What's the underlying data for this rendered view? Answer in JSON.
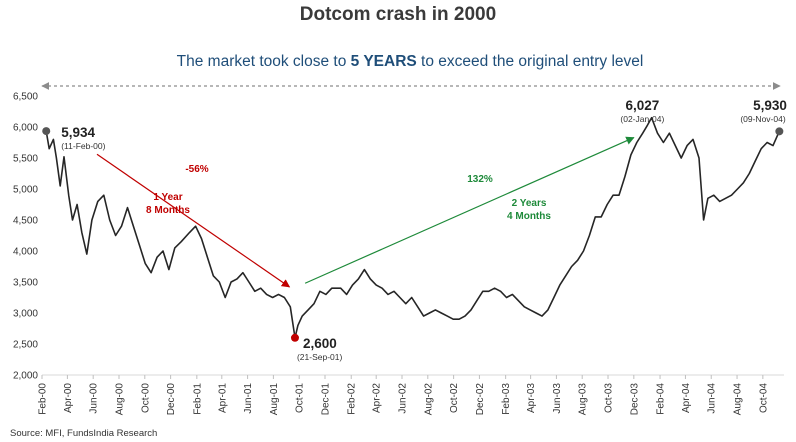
{
  "chart_data": {
    "type": "line",
    "title": "Dotcom crash in 2000",
    "subtitle_parts": [
      "The market took close to ",
      "5 YEARS",
      " to exceed the original entry level"
    ],
    "ylim": [
      2000,
      6500
    ],
    "yticks": [
      "2,000",
      "2,500",
      "3,000",
      "3,500",
      "4,000",
      "4,500",
      "5,000",
      "5,500",
      "6,000",
      "6,500"
    ],
    "x_range": [
      "2000-02-01",
      "2004-11-20"
    ],
    "xticks": [
      {
        "label": "Feb-00",
        "date": "2000-02-01"
      },
      {
        "label": "Apr-00",
        "date": "2000-04-01"
      },
      {
        "label": "Jun-00",
        "date": "2000-06-01"
      },
      {
        "label": "Aug-00",
        "date": "2000-08-01"
      },
      {
        "label": "Oct-00",
        "date": "2000-10-01"
      },
      {
        "label": "Dec-00",
        "date": "2000-12-01"
      },
      {
        "label": "Feb-01",
        "date": "2001-02-01"
      },
      {
        "label": "Apr-01",
        "date": "2001-04-01"
      },
      {
        "label": "Jun-01",
        "date": "2001-06-01"
      },
      {
        "label": "Aug-01",
        "date": "2001-08-01"
      },
      {
        "label": "Oct-01",
        "date": "2001-10-01"
      },
      {
        "label": "Dec-01",
        "date": "2001-12-01"
      },
      {
        "label": "Feb-02",
        "date": "2002-02-01"
      },
      {
        "label": "Apr-02",
        "date": "2002-04-01"
      },
      {
        "label": "Jun-02",
        "date": "2002-06-01"
      },
      {
        "label": "Aug-02",
        "date": "2002-08-01"
      },
      {
        "label": "Oct-02",
        "date": "2002-10-01"
      },
      {
        "label": "Dec-02",
        "date": "2002-12-01"
      },
      {
        "label": "Feb-03",
        "date": "2003-02-01"
      },
      {
        "label": "Apr-03",
        "date": "2003-04-01"
      },
      {
        "label": "Jun-03",
        "date": "2003-06-01"
      },
      {
        "label": "Aug-03",
        "date": "2003-08-01"
      },
      {
        "label": "Oct-03",
        "date": "2003-10-01"
      },
      {
        "label": "Dec-03",
        "date": "2003-12-01"
      },
      {
        "label": "Feb-04",
        "date": "2004-02-01"
      },
      {
        "label": "Apr-04",
        "date": "2004-04-01"
      },
      {
        "label": "Jun-04",
        "date": "2004-06-01"
      },
      {
        "label": "Aug-04",
        "date": "2004-08-01"
      },
      {
        "label": "Oct-04",
        "date": "2004-10-01"
      }
    ],
    "series": [
      {
        "color": "#262626",
        "points": [
          [
            "2000-02-11",
            5934
          ],
          [
            "2000-02-18",
            5650
          ],
          [
            "2000-02-28",
            5800
          ],
          [
            "2000-03-06",
            5500
          ],
          [
            "2000-03-15",
            5050
          ],
          [
            "2000-03-24",
            5520
          ],
          [
            "2000-04-04",
            4900
          ],
          [
            "2000-04-13",
            4500
          ],
          [
            "2000-04-24",
            4750
          ],
          [
            "2000-05-05",
            4300
          ],
          [
            "2000-05-17",
            3950
          ],
          [
            "2000-05-29",
            4500
          ],
          [
            "2000-06-12",
            4800
          ],
          [
            "2000-06-26",
            4900
          ],
          [
            "2000-07-10",
            4500
          ],
          [
            "2000-07-24",
            4250
          ],
          [
            "2000-08-07",
            4400
          ],
          [
            "2000-08-21",
            4700
          ],
          [
            "2000-09-04",
            4400
          ],
          [
            "2000-09-18",
            4100
          ],
          [
            "2000-10-02",
            3800
          ],
          [
            "2000-10-16",
            3650
          ],
          [
            "2000-10-30",
            3900
          ],
          [
            "2000-11-13",
            4000
          ],
          [
            "2000-11-27",
            3700
          ],
          [
            "2000-12-11",
            4050
          ],
          [
            "2000-12-26",
            4150
          ],
          [
            "2001-01-15",
            4300
          ],
          [
            "2001-01-29",
            4400
          ],
          [
            "2001-02-12",
            4200
          ],
          [
            "2001-02-26",
            3900
          ],
          [
            "2001-03-12",
            3600
          ],
          [
            "2001-03-26",
            3500
          ],
          [
            "2001-04-09",
            3250
          ],
          [
            "2001-04-23",
            3500
          ],
          [
            "2001-05-07",
            3550
          ],
          [
            "2001-05-21",
            3650
          ],
          [
            "2001-06-04",
            3500
          ],
          [
            "2001-06-18",
            3350
          ],
          [
            "2001-07-02",
            3400
          ],
          [
            "2001-07-16",
            3300
          ],
          [
            "2001-07-30",
            3250
          ],
          [
            "2001-08-13",
            3300
          ],
          [
            "2001-08-27",
            3250
          ],
          [
            "2001-09-10",
            3100
          ],
          [
            "2001-09-21",
            2600
          ],
          [
            "2001-09-28",
            2800
          ],
          [
            "2001-10-08",
            2950
          ],
          [
            "2001-10-22",
            3050
          ],
          [
            "2001-11-05",
            3150
          ],
          [
            "2001-11-19",
            3350
          ],
          [
            "2001-12-03",
            3300
          ],
          [
            "2001-12-17",
            3400
          ],
          [
            "2002-01-07",
            3400
          ],
          [
            "2002-01-21",
            3300
          ],
          [
            "2002-02-04",
            3450
          ],
          [
            "2002-02-18",
            3550
          ],
          [
            "2002-03-04",
            3700
          ],
          [
            "2002-03-18",
            3550
          ],
          [
            "2002-04-01",
            3450
          ],
          [
            "2002-04-15",
            3400
          ],
          [
            "2002-04-29",
            3300
          ],
          [
            "2002-05-13",
            3350
          ],
          [
            "2002-05-27",
            3250
          ],
          [
            "2002-06-10",
            3150
          ],
          [
            "2002-06-24",
            3250
          ],
          [
            "2002-07-08",
            3100
          ],
          [
            "2002-07-22",
            2950
          ],
          [
            "2002-08-05",
            3000
          ],
          [
            "2002-08-19",
            3050
          ],
          [
            "2002-09-02",
            3000
          ],
          [
            "2002-09-16",
            2950
          ],
          [
            "2002-09-30",
            2900
          ],
          [
            "2002-10-14",
            2900
          ],
          [
            "2002-10-28",
            2950
          ],
          [
            "2002-11-11",
            3050
          ],
          [
            "2002-11-25",
            3200
          ],
          [
            "2002-12-09",
            3350
          ],
          [
            "2002-12-23",
            3350
          ],
          [
            "2003-01-06",
            3400
          ],
          [
            "2003-01-20",
            3350
          ],
          [
            "2003-02-03",
            3250
          ],
          [
            "2003-02-17",
            3300
          ],
          [
            "2003-03-03",
            3200
          ],
          [
            "2003-03-17",
            3100
          ],
          [
            "2003-03-31",
            3050
          ],
          [
            "2003-04-14",
            3000
          ],
          [
            "2003-04-28",
            2950
          ],
          [
            "2003-05-12",
            3050
          ],
          [
            "2003-05-26",
            3250
          ],
          [
            "2003-06-09",
            3450
          ],
          [
            "2003-06-23",
            3600
          ],
          [
            "2003-07-07",
            3750
          ],
          [
            "2003-07-21",
            3850
          ],
          [
            "2003-08-04",
            4000
          ],
          [
            "2003-08-18",
            4250
          ],
          [
            "2003-09-01",
            4550
          ],
          [
            "2003-09-15",
            4550
          ],
          [
            "2003-09-29",
            4750
          ],
          [
            "2003-10-13",
            4900
          ],
          [
            "2003-10-27",
            4900
          ],
          [
            "2003-11-10",
            5200
          ],
          [
            "2003-11-24",
            5550
          ],
          [
            "2003-12-08",
            5750
          ],
          [
            "2003-12-22",
            5900
          ],
          [
            "2004-01-02",
            6027
          ],
          [
            "2004-01-12",
            6150
          ],
          [
            "2004-01-26",
            5900
          ],
          [
            "2004-02-09",
            5750
          ],
          [
            "2004-02-23",
            5900
          ],
          [
            "2004-03-08",
            5700
          ],
          [
            "2004-03-22",
            5500
          ],
          [
            "2004-04-05",
            5700
          ],
          [
            "2004-04-19",
            5800
          ],
          [
            "2004-05-03",
            5500
          ],
          [
            "2004-05-14",
            4500
          ],
          [
            "2004-05-24",
            4850
          ],
          [
            "2004-06-07",
            4900
          ],
          [
            "2004-06-21",
            4800
          ],
          [
            "2004-07-05",
            4850
          ],
          [
            "2004-07-19",
            4900
          ],
          [
            "2004-08-02",
            5000
          ],
          [
            "2004-08-16",
            5100
          ],
          [
            "2004-08-30",
            5250
          ],
          [
            "2004-09-13",
            5450
          ],
          [
            "2004-09-27",
            5650
          ],
          [
            "2004-10-11",
            5750
          ],
          [
            "2004-10-25",
            5700
          ],
          [
            "2004-11-09",
            5930
          ]
        ]
      }
    ],
    "annotations": [
      {
        "value": "5,934",
        "date": "(11-Feb-00)",
        "color": "#555555"
      },
      {
        "value": "2,600",
        "date": "(21-Sep-01)",
        "color": "#c00000"
      },
      {
        "value": "6,027",
        "date": "(02-Jan-04)",
        "color": "#555555"
      },
      {
        "value": "5,930",
        "date": "(09-Nov-04)",
        "color": "#555555"
      }
    ],
    "arrows": {
      "decline": {
        "pct": "-56%",
        "duration_line1": "1 Year",
        "duration_line2": "8 Months",
        "color": "#c00000"
      },
      "recovery": {
        "pct": "132%",
        "duration_line1": "2 Years",
        "duration_line2": "4 Months",
        "color": "#1e8a3a"
      }
    },
    "grid": false,
    "legend": "none"
  },
  "source": "Source: MFI, FundsIndia Research"
}
